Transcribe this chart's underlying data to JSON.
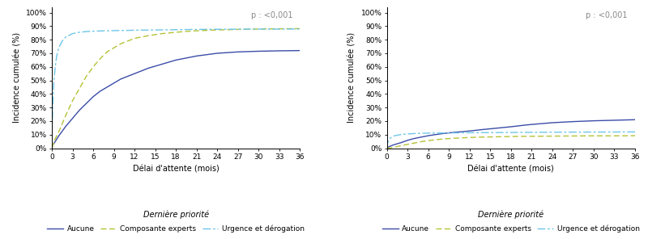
{
  "left_chart": {
    "aucune": {
      "x": [
        0,
        0.1,
        0.5,
        1,
        2,
        3,
        4,
        5,
        6,
        7,
        8,
        9,
        10,
        11,
        12,
        14,
        16,
        18,
        20,
        21,
        24,
        27,
        30,
        33,
        36
      ],
      "y": [
        0,
        0.02,
        0.05,
        0.09,
        0.16,
        0.22,
        0.28,
        0.33,
        0.38,
        0.42,
        0.45,
        0.48,
        0.51,
        0.53,
        0.55,
        0.59,
        0.62,
        0.65,
        0.67,
        0.68,
        0.7,
        0.71,
        0.715,
        0.718,
        0.72
      ]
    },
    "composante": {
      "x": [
        0,
        0.2,
        0.5,
        1,
        2,
        3,
        4,
        5,
        6,
        7,
        8,
        9,
        10,
        11,
        12,
        14,
        16,
        18,
        20,
        21,
        24,
        27,
        30,
        33,
        36
      ],
      "y": [
        0,
        0.03,
        0.07,
        0.12,
        0.24,
        0.35,
        0.44,
        0.53,
        0.6,
        0.66,
        0.71,
        0.74,
        0.77,
        0.79,
        0.81,
        0.83,
        0.845,
        0.855,
        0.863,
        0.866,
        0.872,
        0.876,
        0.879,
        0.881,
        0.882
      ]
    },
    "urgence": {
      "x": [
        0,
        0.05,
        0.15,
        0.3,
        0.5,
        0.7,
        1,
        1.5,
        2,
        3,
        4,
        5,
        6,
        8,
        10,
        12,
        15,
        18,
        21,
        24,
        30,
        36
      ],
      "y": [
        0,
        0.16,
        0.32,
        0.5,
        0.6,
        0.68,
        0.74,
        0.79,
        0.82,
        0.845,
        0.855,
        0.86,
        0.863,
        0.866,
        0.868,
        0.87,
        0.872,
        0.874,
        0.876,
        0.877,
        0.878,
        0.879
      ]
    }
  },
  "right_chart": {
    "aucune": {
      "x": [
        0,
        0.2,
        0.5,
        1,
        2,
        3,
        4,
        5,
        6,
        7,
        8,
        9,
        10,
        11,
        12,
        14,
        16,
        18,
        20,
        21,
        24,
        27,
        30,
        33,
        36
      ],
      "y": [
        0,
        0.008,
        0.015,
        0.025,
        0.04,
        0.058,
        0.072,
        0.082,
        0.092,
        0.1,
        0.107,
        0.113,
        0.118,
        0.122,
        0.127,
        0.138,
        0.148,
        0.158,
        0.17,
        0.175,
        0.188,
        0.196,
        0.202,
        0.206,
        0.21
      ]
    },
    "composante": {
      "x": [
        0,
        0.3,
        0.8,
        1.5,
        2,
        3,
        4,
        5,
        6,
        7,
        8,
        9,
        10,
        12,
        14,
        16,
        18,
        21,
        24,
        27,
        30,
        33,
        36
      ],
      "y": [
        0,
        0.001,
        0.005,
        0.012,
        0.018,
        0.028,
        0.038,
        0.048,
        0.056,
        0.062,
        0.067,
        0.071,
        0.074,
        0.079,
        0.082,
        0.084,
        0.086,
        0.088,
        0.089,
        0.09,
        0.091,
        0.091,
        0.092
      ]
    },
    "urgence": {
      "x": [
        0,
        0.05,
        0.15,
        0.3,
        0.5,
        0.7,
        1,
        1.5,
        2,
        3,
        4,
        5,
        6,
        8,
        10,
        12,
        15,
        18,
        21,
        24,
        30,
        36
      ],
      "y": [
        0,
        0.025,
        0.045,
        0.062,
        0.074,
        0.082,
        0.09,
        0.096,
        0.1,
        0.105,
        0.108,
        0.11,
        0.111,
        0.112,
        0.113,
        0.114,
        0.115,
        0.116,
        0.117,
        0.118,
        0.119,
        0.12
      ]
    }
  },
  "color_aucune": "#3b4ca8",
  "color_composante": "#b5c234",
  "color_urgence": "#6ec6e8",
  "ylabel": "Incidence cumulée (%)",
  "xlabel": "Délai d'attente (mois)",
  "legend_title": "Dernière priorité",
  "legend_aucune": "Aucune",
  "legend_composante": "Composante experts",
  "legend_urgence": "Urgence et dérogation",
  "pvalue": "p : <0,001",
  "xticks": [
    0,
    3,
    6,
    9,
    12,
    15,
    18,
    21,
    24,
    27,
    30,
    33,
    36
  ],
  "yticks": [
    0,
    0.1,
    0.2,
    0.3,
    0.4,
    0.5,
    0.6,
    0.7,
    0.8,
    0.9,
    1.0
  ],
  "ylim": [
    0,
    1.04
  ]
}
